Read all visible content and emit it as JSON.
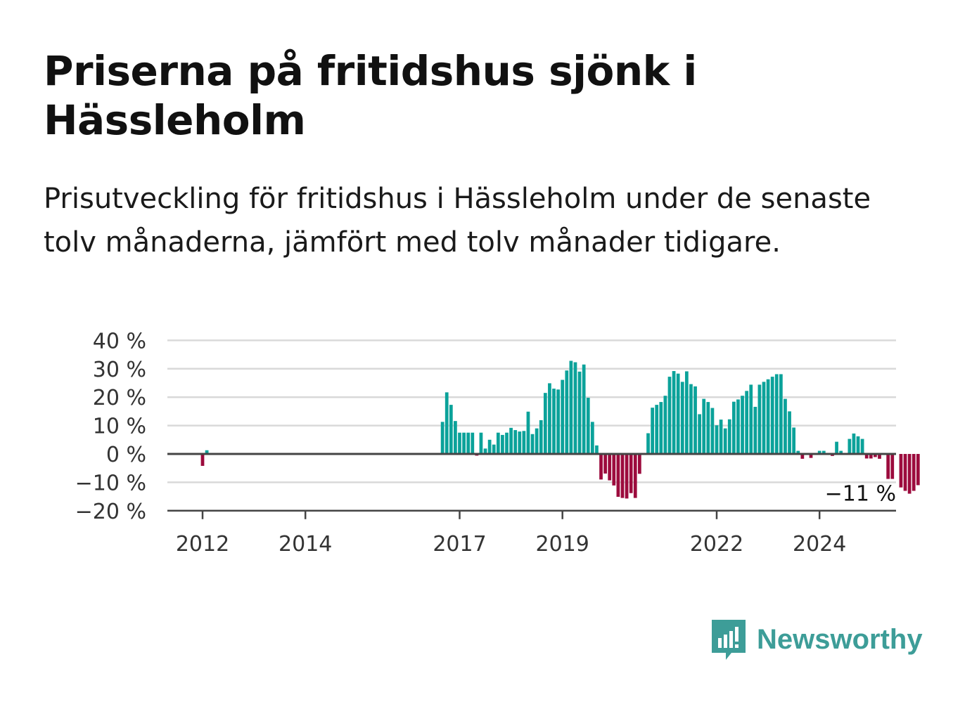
{
  "title": "Priserna på fritidshus sjönk i Hässleholm",
  "subtitle": "Prisutveckling för fritidshus i Hässleholm under de senaste tolv månaderna, jämfört med tolv månader tidigare.",
  "brand": {
    "name": "Newsworthy",
    "icon": "newsworthy-logo-icon",
    "color": "#3d9d98"
  },
  "colors": {
    "positive": "#0ba29a",
    "negative": "#9c0b3d",
    "grid": "#d9d9d9",
    "zero_line": "#444444"
  },
  "chart_data": {
    "type": "bar",
    "ylim": [
      -20,
      40
    ],
    "ytick_values": [
      40,
      30,
      20,
      10,
      0,
      -10,
      -20
    ],
    "ytick_labels": [
      "40 %",
      "30 %",
      "20 %",
      "10 %",
      "0 %",
      "−10 %",
      "−20 %"
    ],
    "xtick_labels": [
      {
        "label": "2012",
        "year": 2012.0
      },
      {
        "label": "2014",
        "year": 2014.0
      },
      {
        "label": "2017",
        "year": 2017.0
      },
      {
        "label": "2019",
        "year": 2019.0
      },
      {
        "label": "2022",
        "year": 2022.0
      },
      {
        "label": "2024",
        "year": 2024.0
      }
    ],
    "start": "2011-01",
    "values": [
      0,
      0,
      0,
      0,
      0,
      0,
      0,
      0,
      0,
      0,
      0,
      0,
      -4.2,
      1.3,
      0,
      0,
      0,
      0,
      0,
      0,
      0,
      0,
      0,
      0,
      0,
      0,
      0,
      0,
      0,
      0,
      0,
      0,
      0,
      0,
      0,
      0,
      0,
      0,
      0,
      0,
      0,
      0,
      0,
      0,
      0,
      0,
      0,
      0,
      0,
      0,
      0,
      0,
      0,
      0,
      0,
      0,
      0,
      0,
      0,
      0,
      0,
      0,
      0,
      0,
      0,
      0,
      0,
      0,
      11.3,
      21.7,
      17.3,
      11.6,
      7.5,
      7.5,
      7.5,
      7.5,
      -0.6,
      7.5,
      1.9,
      5.0,
      3.3,
      7.5,
      6.7,
      7.5,
      9.2,
      8.4,
      7.9,
      8.1,
      14.9,
      7.0,
      9.0,
      11.9,
      21.5,
      24.9,
      23.0,
      22.7,
      26.1,
      29.4,
      32.8,
      32.3,
      29.0,
      31.5,
      19.8,
      11.3,
      3.0,
      -9.0,
      -6.9,
      -9.3,
      -11.1,
      -15.1,
      -15.5,
      -15.7,
      -13.8,
      -15.5,
      -7.0,
      0,
      7.3,
      16.3,
      17.3,
      18.3,
      20.5,
      27.2,
      29.2,
      28.3,
      25.4,
      29.1,
      24.6,
      23.8,
      14.0,
      19.4,
      18.3,
      16.2,
      10.1,
      12.1,
      9.0,
      12.2,
      18.4,
      19.2,
      20.5,
      22.2,
      24.4,
      16.6,
      24.4,
      25.4,
      26.3,
      27.2,
      28.1,
      28.1,
      19.4,
      15.0,
      9.3,
      1.1,
      -1.7,
      0,
      -1.4,
      0,
      1.1,
      1.1,
      0,
      -0.7,
      4.3,
      1.1,
      0,
      5.3,
      7.2,
      6.2,
      5.3,
      -1.6,
      -1.6,
      -1.1,
      -1.7,
      0,
      -8.8,
      -8.8,
      0,
      -11.8,
      -13.0,
      -14.0,
      -13.0,
      -11.0
    ],
    "annotation": "−11 %"
  }
}
